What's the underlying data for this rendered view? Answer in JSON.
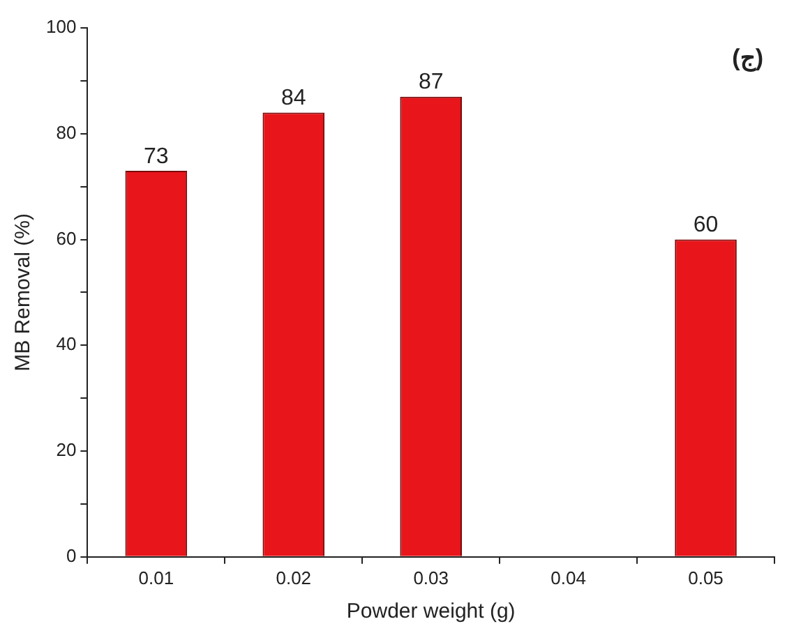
{
  "chart_data": {
    "type": "bar",
    "xlabel": "Powder weight (g)",
    "ylabel": "MB Removal (%)",
    "categories": [
      "0.01",
      "0.02",
      "0.03",
      "0.04",
      "0.05"
    ],
    "values": [
      73,
      84,
      87,
      null,
      60
    ],
    "color": "#e8151b",
    "ylim": [
      0,
      100
    ],
    "yticks": [
      0,
      {
        "value": 10,
        "label": null
      },
      20,
      {
        "value": 30,
        "label": null
      },
      40,
      {
        "value": 50,
        "label": null
      },
      60,
      {
        "value": 70,
        "label": null
      },
      80,
      {
        "value": 90,
        "label": null
      },
      100
    ],
    "grid": false,
    "legend": false,
    "data_labels": true,
    "annotations": [
      "(ج)"
    ]
  }
}
